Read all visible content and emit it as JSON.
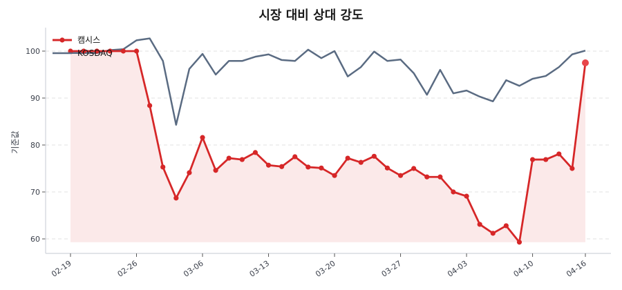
{
  "chart": {
    "title": "시장 대비 상대 강도",
    "ylabel": "기준값"
  },
  "colors": {
    "primary": "#d62728",
    "primary_fill": "#fbe9e9",
    "benchmark": "#5a6b82",
    "grid": "#e0e0e0",
    "axis": "#cfd3da"
  },
  "chart_data": {
    "type": "line",
    "title": "시장 대비 상대 강도",
    "xlabel": "",
    "ylabel": "기준값",
    "ylim": [
      57.5,
      105
    ],
    "yticks": [
      60,
      70,
      80,
      90,
      100
    ],
    "grid": true,
    "legend_position": "upper left",
    "xtick_labels": [
      "02-19",
      "02-26",
      "03-06",
      "03-13",
      "03-20",
      "03-27",
      "04-03",
      "04-10",
      "04-16"
    ],
    "xtick_indices": [
      0,
      5,
      10,
      15,
      20,
      25,
      30,
      35,
      39
    ],
    "series": [
      {
        "name": "캠시스",
        "color": "#d62728",
        "markers": true,
        "fill": true,
        "values": [
          100,
          100,
          100,
          100,
          100,
          100,
          88.4,
          75.3,
          68.7,
          74.1,
          81.6,
          74.6,
          77.2,
          76.9,
          78.4,
          75.7,
          75.4,
          77.5,
          75.3,
          75.1,
          73.5,
          77.2,
          76.3,
          77.6,
          75.1,
          73.5,
          75.0,
          73.2,
          73.2,
          70.0,
          69.1,
          63.1,
          61.2,
          62.8,
          59.3,
          76.9,
          76.9,
          78.1,
          75.0,
          97.5
        ]
      },
      {
        "name": "KOSDAQ",
        "color": "#5a6b82",
        "markers": false,
        "fill": false,
        "values": [
          99.6,
          99.6,
          99.6,
          100.2,
          100.4,
          102.3,
          102.7,
          97.9,
          84.3,
          96.2,
          99.4,
          95.0,
          97.9,
          97.9,
          98.8,
          99.3,
          98.1,
          97.9,
          100.3,
          98.5,
          100.0,
          94.6,
          96.6,
          99.9,
          97.9,
          98.2,
          95.3,
          90.7,
          96.0,
          91.0,
          91.6,
          90.3,
          89.3,
          93.8,
          92.6,
          94.1,
          94.7,
          96.6,
          99.3,
          100.1
        ]
      }
    ]
  }
}
